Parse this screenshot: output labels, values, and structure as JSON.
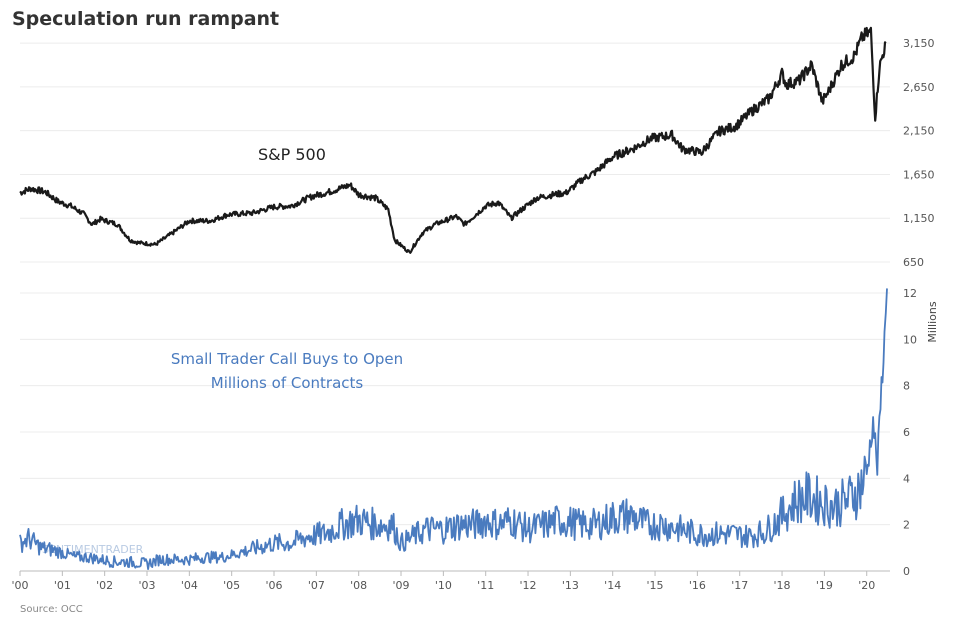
{
  "chart_data": [
    {
      "type": "line",
      "title": "Speculation run rampant",
      "annotation": "S&P 500",
      "ylim": [
        650,
        3300
      ],
      "y_ticks": [
        "650",
        "1,150",
        "1,650",
        "2,150",
        "2,650",
        "3,150"
      ],
      "y_tick_values": [
        650,
        1150,
        1650,
        2150,
        2650,
        3150
      ],
      "grid": true,
      "color": "#1a1a1a",
      "series": [
        {
          "x": [
            2000.0,
            2000.25,
            2000.6,
            2000.9,
            2001.2,
            2001.5,
            2001.7,
            2001.9,
            2002.3,
            2002.6,
            2002.8,
            2003.2,
            2003.6,
            2004.0,
            2004.5,
            2004.9,
            2005.5,
            2006.0,
            2006.4,
            2006.9,
            2007.3,
            2007.8,
            2008.0,
            2008.4,
            2008.7,
            2008.85,
            2009.0,
            2009.2,
            2009.5,
            2009.8,
            2010.3,
            2010.5,
            2011.0,
            2011.3,
            2011.6,
            2011.8,
            2012.2,
            2012.6,
            2012.9,
            2013.3,
            2013.6,
            2014.0,
            2014.5,
            2014.9,
            2015.4,
            2015.65,
            2016.1,
            2016.5,
            2016.9,
            2017.3,
            2017.7,
            2018.0,
            2018.1,
            2018.4,
            2018.7,
            2018.95,
            2019.1,
            2019.4,
            2019.7,
            2019.9,
            2020.1,
            2020.2,
            2020.3,
            2020.45
          ],
          "values": [
            1440,
            1490,
            1450,
            1340,
            1290,
            1200,
            1080,
            1140,
            1080,
            900,
            870,
            850,
            980,
            1120,
            1120,
            1190,
            1210,
            1280,
            1290,
            1400,
            1450,
            1530,
            1420,
            1380,
            1250,
            900,
            840,
            760,
            980,
            1080,
            1170,
            1080,
            1290,
            1330,
            1150,
            1230,
            1380,
            1420,
            1440,
            1600,
            1680,
            1850,
            1950,
            2060,
            2100,
            1940,
            1900,
            2140,
            2200,
            2380,
            2520,
            2800,
            2680,
            2720,
            2900,
            2480,
            2600,
            2900,
            3000,
            3220,
            3280,
            2300,
            2870,
            3150
          ]
        }
      ]
    },
    {
      "type": "line",
      "annotation_line1": "Small Trader Call Buys to Open",
      "annotation_line2": "Millions of Contracts",
      "y_unit_label": "Millions",
      "ylim": [
        0,
        12
      ],
      "y_ticks": [
        "0",
        "2",
        "4",
        "6",
        "8",
        "10",
        "12"
      ],
      "y_tick_values": [
        0,
        2,
        4,
        6,
        8,
        10,
        12
      ],
      "grid": true,
      "color": "#4a7bbf",
      "watermark": "SENTIMENTRADER",
      "series": [
        {
          "x": [
            2000.0,
            2000.2,
            2000.5,
            2000.8,
            2001.0,
            2001.3,
            2001.6,
            2001.9,
            2002.2,
            2002.5,
            2002.8,
            2003.0,
            2003.3,
            2003.6,
            2004.0,
            2004.4,
            2004.8,
            2005.2,
            2005.6,
            2006.0,
            2006.4,
            2006.8,
            2007.2,
            2007.6,
            2008.0,
            2008.4,
            2008.8,
            2009.0,
            2009.3,
            2009.6,
            2010.0,
            2010.4,
            2010.8,
            2011.0,
            2011.3,
            2011.6,
            2012.0,
            2012.4,
            2012.8,
            2013.2,
            2013.6,
            2014.0,
            2014.4,
            2014.8,
            2015.2,
            2015.6,
            2016.0,
            2016.4,
            2016.8,
            2017.2,
            2017.6,
            2018.0,
            2018.3,
            2018.6,
            2018.9,
            2019.2,
            2019.5,
            2019.8,
            2020.0,
            2020.15,
            2020.25,
            2020.35,
            2020.42,
            2020.48
          ],
          "values": [
            1.2,
            1.4,
            1.0,
            0.9,
            0.8,
            0.6,
            0.6,
            0.5,
            0.4,
            0.4,
            0.35,
            0.3,
            0.5,
            0.5,
            0.5,
            0.6,
            0.6,
            0.8,
            1.0,
            1.2,
            1.2,
            1.5,
            1.6,
            2.0,
            2.2,
            2.0,
            2.0,
            1.2,
            1.5,
            1.8,
            1.8,
            2.0,
            2.0,
            2.2,
            2.0,
            2.2,
            1.8,
            2.0,
            2.2,
            2.0,
            2.0,
            2.3,
            2.4,
            2.0,
            2.0,
            1.8,
            1.6,
            1.6,
            1.6,
            1.5,
            1.7,
            2.4,
            3.0,
            3.2,
            3.0,
            2.8,
            3.0,
            3.5,
            4.2,
            6.5,
            4.5,
            8.0,
            10.0,
            12.2
          ]
        }
      ]
    }
  ],
  "x_axis": {
    "tick_values": [
      2000,
      2001,
      2002,
      2003,
      2004,
      2005,
      2006,
      2007,
      2008,
      2009,
      2010,
      2011,
      2012,
      2013,
      2014,
      2015,
      2016,
      2017,
      2018,
      2019,
      2020
    ],
    "tick_labels": [
      "'00",
      "'01",
      "'02",
      "'03",
      "'04",
      "'05",
      "'06",
      "'07",
      "'08",
      "'09",
      "'10",
      "'11",
      "'12",
      "'13",
      "'14",
      "'15",
      "'16",
      "'17",
      "'18",
      "'19",
      "'20"
    ],
    "xlim": [
      2000.0,
      2020.55
    ]
  },
  "source": "Source: OCC"
}
